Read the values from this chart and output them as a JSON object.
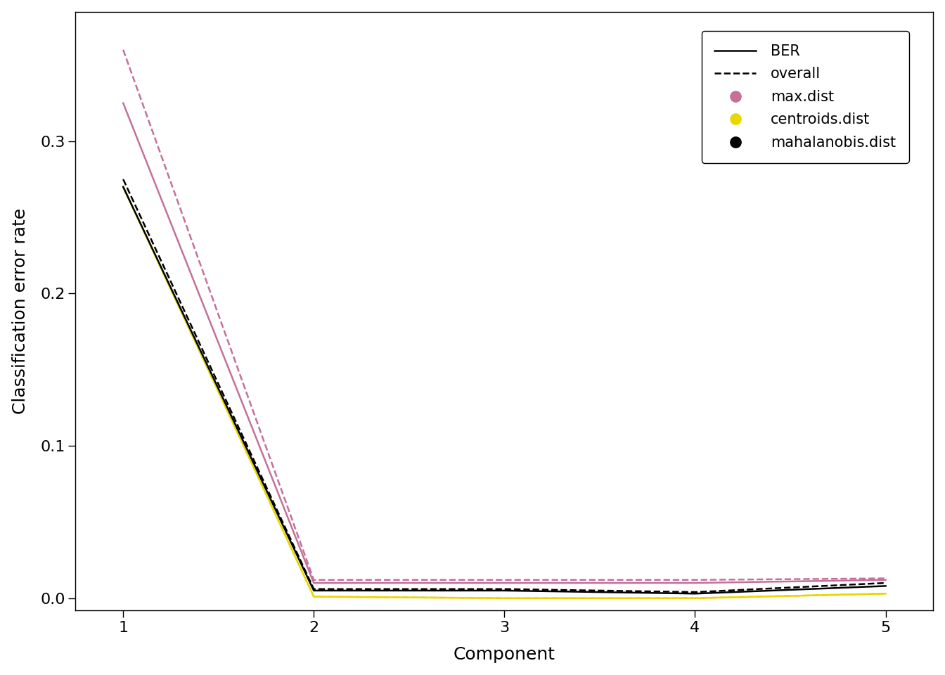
{
  "components": [
    1,
    2,
    3,
    4,
    5
  ],
  "max_dist_BER": [
    0.325,
    0.01,
    0.01,
    0.01,
    0.012
  ],
  "max_dist_overall": [
    0.36,
    0.012,
    0.012,
    0.012,
    0.013
  ],
  "centroids_BER": [
    0.27,
    0.001,
    0.0,
    0.0,
    0.003
  ],
  "centroids_overall": [
    0.27,
    0.001,
    0.0,
    0.0,
    0.003
  ],
  "mahal_BER": [
    0.27,
    0.005,
    0.005,
    0.003,
    0.008
  ],
  "mahal_overall": [
    0.275,
    0.006,
    0.006,
    0.004,
    0.01
  ],
  "max_dist_color": "#C4709A",
  "centroids_color": "#E8D700",
  "mahal_color": "#000000",
  "xlabel": "Component",
  "ylabel": "Classification error rate",
  "ylim": [
    -0.008,
    0.385
  ],
  "xlim": [
    0.75,
    5.25
  ],
  "yticks": [
    0.0,
    0.1,
    0.2,
    0.3
  ],
  "xticks": [
    1,
    2,
    3,
    4,
    5
  ],
  "background_color": "#ffffff",
  "linewidth": 1.8,
  "fontsize_axis_label": 18,
  "fontsize_ticks": 16,
  "fontsize_legend": 15
}
